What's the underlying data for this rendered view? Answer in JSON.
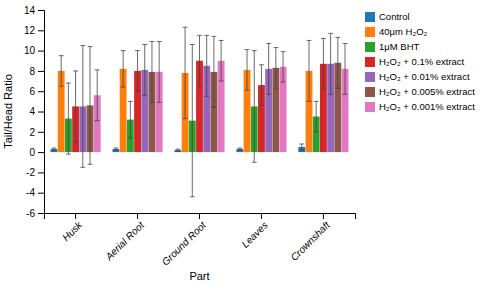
{
  "chart_data": {
    "type": "bar",
    "categories": [
      "Husk",
      "Aerial Root",
      "Ground Root",
      "Leaves",
      "Crownshaft"
    ],
    "series": [
      {
        "name": "Control",
        "values": [
          0.3,
          0.3,
          0.2,
          0.3,
          0.5
        ],
        "errors": [
          0.1,
          0.1,
          0.1,
          0.1,
          0.3
        ]
      },
      {
        "name": "40μm H₂O₂",
        "values": [
          8.0,
          8.2,
          7.8,
          8.1,
          8.0
        ],
        "errors": [
          1.5,
          1.8,
          4.5,
          2.0,
          3.0
        ]
      },
      {
        "name": "1μM BHT",
        "values": [
          3.3,
          3.2,
          3.1,
          4.5,
          3.5
        ],
        "errors": [
          3.5,
          1.8,
          7.5,
          5.5,
          1.5
        ]
      },
      {
        "name": "H₂O₂ + 0.1% extract",
        "values": [
          4.5,
          8.0,
          9.0,
          6.6,
          8.7
        ],
        "errors": [
          3.5,
          2.0,
          2.5,
          2.0,
          2.5
        ]
      },
      {
        "name": "H₂O₂ + 0.01% extract",
        "values": [
          4.5,
          8.1,
          8.5,
          8.2,
          8.7
        ],
        "errors": [
          6.0,
          2.5,
          3.0,
          2.5,
          3.0
        ]
      },
      {
        "name": "H₂O₂ + 0.005% extract",
        "values": [
          4.6,
          7.9,
          7.9,
          8.3,
          8.8
        ],
        "errors": [
          5.8,
          3.0,
          3.5,
          2.0,
          2.5
        ]
      },
      {
        "name": "H₂O₂ + 0.001% extract",
        "values": [
          5.6,
          7.9,
          9.0,
          8.4,
          8.2
        ],
        "errors": [
          2.5,
          3.0,
          2.0,
          1.5,
          2.5
        ]
      }
    ],
    "xlabel": "Part",
    "ylabel": "Tail/Head Ratio",
    "ylim": [
      -6,
      14
    ],
    "yticks": [
      -6,
      -4,
      -2,
      0,
      2,
      4,
      6,
      8,
      10,
      12,
      14
    ],
    "grid": false,
    "legend": "right"
  }
}
